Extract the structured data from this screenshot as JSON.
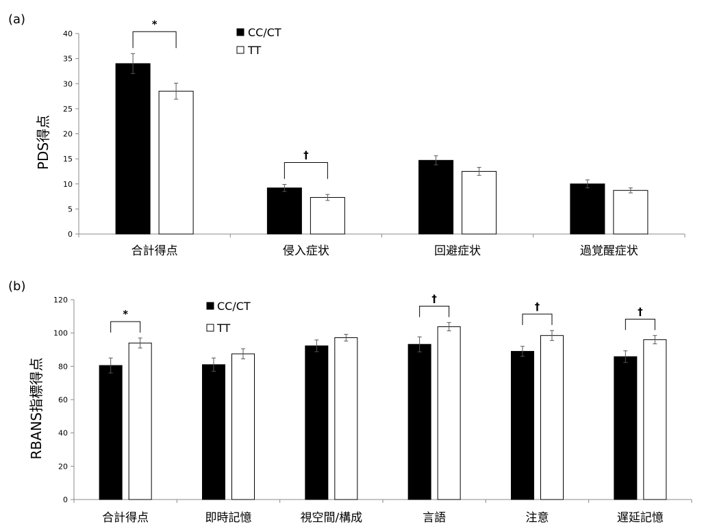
{
  "chart_data": [
    {
      "panel_label": "(a)",
      "type": "bar",
      "ylabel": "PDS得点",
      "ylim": [
        0,
        40
      ],
      "yticks": [
        0,
        5,
        10,
        15,
        20,
        25,
        30,
        35,
        40
      ],
      "categories": [
        "合計得点",
        "侵入症状",
        "回避症状",
        "過覚醒症状"
      ],
      "series": [
        {
          "name": "CC/CT",
          "color": "#000000",
          "values": [
            34.0,
            9.2,
            14.7,
            10.0
          ],
          "errors": [
            2.0,
            0.7,
            0.9,
            0.8
          ]
        },
        {
          "name": "TT",
          "color": "#ffffff",
          "values": [
            28.5,
            7.3,
            12.5,
            8.7
          ],
          "errors": [
            1.6,
            0.6,
            0.8,
            0.5
          ]
        }
      ],
      "significance": [
        {
          "category_index": 0,
          "symbol": "*"
        },
        {
          "category_index": 1,
          "symbol": "†"
        }
      ],
      "legend_position": "top-center",
      "grid": false
    },
    {
      "panel_label": "(b)",
      "type": "bar",
      "ylabel": "RBANS指標得点",
      "ylim": [
        0,
        120
      ],
      "yticks": [
        0,
        20,
        40,
        60,
        80,
        100,
        120
      ],
      "categories": [
        "合計得点",
        "即時記憶",
        "視空間/構成",
        "言語",
        "注意",
        "遅延記憶"
      ],
      "series": [
        {
          "name": "CC/CT",
          "color": "#000000",
          "values": [
            80.5,
            81.0,
            92.3,
            93.2,
            89.0,
            85.8
          ],
          "errors": [
            4.5,
            4.0,
            3.5,
            4.5,
            3.0,
            3.5
          ]
        },
        {
          "name": "TT",
          "color": "#ffffff",
          "values": [
            94.0,
            87.5,
            97.2,
            103.8,
            98.5,
            96.0
          ],
          "errors": [
            3.0,
            3.0,
            2.0,
            2.5,
            3.0,
            2.5
          ]
        }
      ],
      "significance": [
        {
          "category_index": 0,
          "symbol": "*"
        },
        {
          "category_index": 3,
          "symbol": "†"
        },
        {
          "category_index": 4,
          "symbol": "†"
        },
        {
          "category_index": 5,
          "symbol": "†"
        }
      ],
      "legend_position": "top-left",
      "grid": false
    }
  ]
}
